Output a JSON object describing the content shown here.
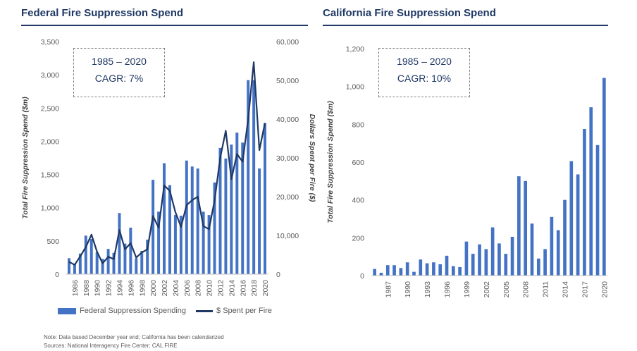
{
  "left_title": "Federal Fire Suppression Spend",
  "right_title": "California Fire Suppression Spend",
  "left_callout": {
    "line1": "1985 – 2020",
    "line2": "CAGR: 7%"
  },
  "right_callout": {
    "line1": "1985 – 2020",
    "line2": "CAGR: 10%"
  },
  "legend": {
    "bar_label": "Federal Suppression Spending",
    "line_label": "$ Spent per Fire"
  },
  "note": "Note: Data based December year end; California has been calendarized",
  "sources": "Sources: National Interagency Fire Center; CAL FIRE",
  "colors": {
    "bar": "#4472c4",
    "line": "#1f3864",
    "text": "#1f3864"
  },
  "chart_data": [
    {
      "type": "bar+line",
      "title": "Federal Fire Suppression Spend",
      "ylabel": "Total Fire Suppression Spend ($m)",
      "y2label": "Dollars Spent per Fire ($)",
      "ylim": [
        0,
        3500
      ],
      "y2lim": [
        0,
        60000
      ],
      "yticks": [
        "0",
        "500",
        "1,000",
        "1,500",
        "2,000",
        "2,500",
        "3,000",
        "3,500"
      ],
      "y2ticks": [
        "0",
        "10,000",
        "20,000",
        "30,000",
        "40,000",
        "50,000",
        "60,000"
      ],
      "x": [
        1985,
        1986,
        1987,
        1988,
        1989,
        1990,
        1991,
        1992,
        1993,
        1994,
        1995,
        1996,
        1997,
        1998,
        1999,
        2000,
        2001,
        2002,
        2003,
        2004,
        2005,
        2006,
        2007,
        2008,
        2009,
        2010,
        2011,
        2012,
        2013,
        2014,
        2015,
        2016,
        2017,
        2018,
        2019,
        2020
      ],
      "xtick_labels": [
        "1986",
        "1988",
        "1990",
        "1992",
        "1994",
        "1996",
        "1998",
        "2000",
        "2002",
        "2004",
        "2006",
        "2008",
        "2010",
        "2012",
        "2014",
        "2016",
        "2018",
        "2020"
      ],
      "series": [
        {
          "name": "Federal Suppression Spending",
          "kind": "bar",
          "values": [
            240,
            160,
            310,
            580,
            530,
            330,
            230,
            380,
            320,
            920,
            460,
            700,
            240,
            350,
            520,
            1420,
            940,
            1670,
            1340,
            890,
            880,
            1710,
            1620,
            1590,
            940,
            890,
            1380,
            1900,
            1740,
            1950,
            2130,
            1980,
            2920,
            2920,
            1590,
            2270
          ]
        },
        {
          "name": "$ Spent per Fire",
          "kind": "line",
          "axis": "secondary",
          "values": [
            3200,
            2400,
            4600,
            7000,
            10200,
            5800,
            2800,
            4500,
            3900,
            11400,
            6400,
            8000,
            4300,
            5600,
            6400,
            15000,
            12000,
            22900,
            21500,
            16000,
            12200,
            17800,
            19100,
            20000,
            12400,
            11600,
            19000,
            30000,
            37000,
            24500,
            31000,
            29000,
            40000,
            54700,
            32000,
            39000
          ]
        }
      ]
    },
    {
      "type": "bar",
      "title": "California Fire Suppression Spend",
      "ylabel": "Total Fire Suppression Spend ($m)",
      "ylim": [
        0,
        1200
      ],
      "yticks": [
        "0",
        "200",
        "400",
        "600",
        "800",
        "1,000",
        "1,200"
      ],
      "x": [
        1985,
        1986,
        1987,
        1988,
        1989,
        1990,
        1991,
        1992,
        1993,
        1994,
        1995,
        1996,
        1997,
        1998,
        1999,
        2000,
        2001,
        2002,
        2003,
        2004,
        2005,
        2006,
        2007,
        2008,
        2009,
        2010,
        2011,
        2012,
        2013,
        2014,
        2015,
        2016,
        2017,
        2018,
        2019,
        2020
      ],
      "xtick_labels": [
        "1987",
        "1990",
        "1993",
        "1996",
        "1999",
        "2002",
        "2005",
        "2008",
        "2011",
        "2014",
        "2017",
        "2020"
      ],
      "series": [
        {
          "name": "California",
          "kind": "bar",
          "values": [
            35,
            15,
            55,
            55,
            40,
            70,
            20,
            85,
            65,
            70,
            60,
            105,
            50,
            45,
            180,
            115,
            165,
            140,
            255,
            170,
            115,
            205,
            525,
            500,
            275,
            90,
            140,
            310,
            240,
            400,
            605,
            535,
            775,
            890,
            690,
            1045
          ]
        }
      ]
    }
  ]
}
